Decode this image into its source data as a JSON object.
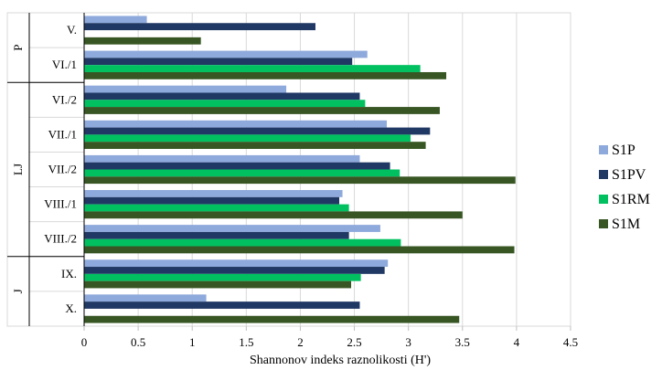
{
  "chart_data": {
    "type": "bar",
    "orientation": "horizontal",
    "xlabel": "Shannonov indeks raznolikosti (H')",
    "xlim": [
      0,
      4.5
    ],
    "xticks": [
      "0",
      "0.5",
      "1",
      "1.5",
      "2",
      "2.5",
      "3",
      "3.5",
      "4",
      "4.5"
    ],
    "grid": "vertical",
    "legend_position": "right",
    "categories": [
      "V.",
      "VI./1",
      "VI./2",
      "VII./1",
      "VII./2",
      "VIII./1",
      "VIII./2",
      "IX.",
      "X."
    ],
    "groups": [
      {
        "label": "P",
        "categories": [
          "V.",
          "VI./1"
        ]
      },
      {
        "label": "LJ",
        "categories": [
          "VI./2",
          "VII./1",
          "VII./2",
          "VIII./1",
          "VIII./2"
        ]
      },
      {
        "label": "J",
        "categories": [
          "IX.",
          "X."
        ]
      }
    ],
    "series": [
      {
        "name": "S1P",
        "color": "#8EA9DB",
        "values": [
          0.58,
          2.62,
          1.87,
          2.8,
          2.55,
          2.39,
          2.74,
          2.81,
          1.13
        ]
      },
      {
        "name": "S1PV",
        "color": "#203864",
        "values": [
          2.14,
          2.48,
          2.55,
          3.2,
          2.83,
          2.36,
          2.45,
          2.78,
          2.55
        ]
      },
      {
        "name": "S1RM",
        "color": "#00C060",
        "values": [
          null,
          3.11,
          2.6,
          3.02,
          2.92,
          2.45,
          2.93,
          2.56,
          null
        ]
      },
      {
        "name": "S1M",
        "color": "#375623",
        "values": [
          1.08,
          3.35,
          3.29,
          3.16,
          3.99,
          3.5,
          3.98,
          2.47,
          3.47
        ]
      }
    ]
  }
}
